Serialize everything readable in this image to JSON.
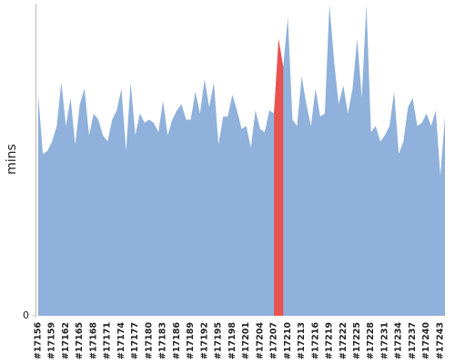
{
  "chart_data": {
    "type": "area",
    "y_label": "mins",
    "categories": [
      "#17156",
      null,
      null,
      "#17159",
      null,
      null,
      "#17162",
      null,
      null,
      "#17165",
      null,
      null,
      "#17168",
      null,
      null,
      "#17171",
      null,
      null,
      "#17174",
      null,
      null,
      "#17177",
      null,
      null,
      "#17180",
      null,
      null,
      "#17183",
      null,
      null,
      "#17186",
      null,
      null,
      "#17189",
      null,
      null,
      "#17192",
      null,
      null,
      "#17195",
      null,
      null,
      "#17198",
      null,
      null,
      "#17201",
      null,
      null,
      "#17204",
      null,
      null,
      "#17207",
      null,
      null,
      "#17210",
      null,
      null,
      "#17213",
      null,
      null,
      "#17216",
      null,
      null,
      "#17219",
      null,
      null,
      "#17222",
      null,
      null,
      "#17225",
      null,
      null,
      "#17228",
      null,
      null,
      "#17231",
      null,
      null,
      "#17234",
      null,
      null,
      "#17237",
      null,
      null,
      "#17240",
      null,
      null,
      "#17243",
      null
    ],
    "values": [
      71,
      52,
      53,
      56,
      61,
      75,
      61,
      70,
      55,
      68,
      73,
      58,
      65,
      63,
      58,
      56,
      63,
      66,
      73,
      53,
      75,
      58,
      65,
      62,
      63,
      62,
      59,
      69,
      58,
      63,
      66,
      68,
      63,
      63,
      72,
      65,
      76,
      67,
      75,
      55,
      64,
      64,
      71,
      66,
      60,
      61,
      54,
      66,
      60,
      59,
      66,
      65,
      89,
      80,
      96,
      63,
      61,
      77,
      68,
      61,
      73,
      64,
      65,
      100,
      82,
      68,
      74,
      65,
      73,
      89,
      70,
      100,
      59,
      61,
      56,
      58,
      61,
      72,
      52,
      56,
      67,
      70,
      61,
      62,
      65,
      61,
      66,
      45,
      64
    ],
    "color": "#8fb1db",
    "point_colors": [
      "#8fb1db",
      "#8fb1db",
      "#8fb1db",
      "#8fb1db",
      "#8fb1db",
      "#8fb1db",
      "#8fb1db",
      "#8fb1db",
      "#8fb1db",
      "#8fb1db",
      "#8fb1db",
      "#8fb1db",
      "#8fb1db",
      "#8fb1db",
      "#8fb1db",
      "#8fb1db",
      "#8fb1db",
      "#8fb1db",
      "#8fb1db",
      "#8fb1db",
      "#8fb1db",
      "#8fb1db",
      "#8fb1db",
      "#8fb1db",
      "#8fb1db",
      "#8fb1db",
      "#8fb1db",
      "#8fb1db",
      "#8fb1db",
      "#8fb1db",
      "#8fb1db",
      "#8fb1db",
      "#8fb1db",
      "#8fb1db",
      "#8fb1db",
      "#8fb1db",
      "#8fb1db",
      "#8fb1db",
      "#8fb1db",
      "#8fb1db",
      "#8fb1db",
      "#8fb1db",
      "#8fb1db",
      "#8fb1db",
      "#8fb1db",
      "#8fb1db",
      "#8fb1db",
      "#8fb1db",
      "#8fb1db",
      "#8fb1db",
      "#8fb1db",
      "#e8534f",
      "#e8534f",
      "#e8534f",
      "#8fb1db",
      "#8fb1db",
      "#8fb1db",
      "#8fb1db",
      "#8fb1db",
      "#8fb1db",
      "#8fb1db",
      "#8fb1db",
      "#8fb1db",
      "#8fb1db",
      "#8fb1db",
      "#8fb1db",
      "#8fb1db",
      "#8fb1db",
      "#8fb1db",
      "#8fb1db",
      "#8fb1db",
      "#8fb1db",
      "#8fb1db",
      "#8fb1db",
      "#8fb1db",
      "#8fb1db",
      "#8fb1db",
      "#8fb1db",
      "#8fb1db",
      "#8fb1db",
      "#8fb1db",
      "#8fb1db",
      "#8fb1db",
      "#8fb1db",
      "#8fb1db",
      "#8fb1db",
      "#8fb1db",
      "#8fb1db",
      "#8fb1db"
    ],
    "ylim": [
      0,
      100
    ],
    "yticks": [
      0
    ],
    "grid": false
  }
}
